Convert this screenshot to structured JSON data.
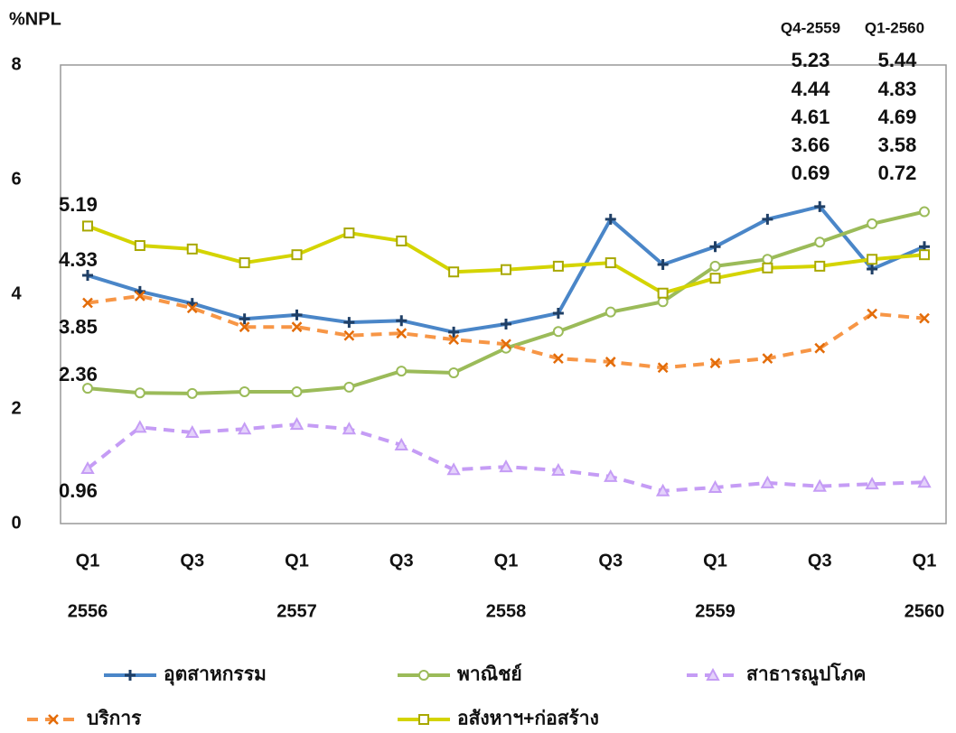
{
  "chart_data": {
    "type": "line",
    "ylabel": "%NPL",
    "categories": [
      "Q1",
      null,
      "Q3",
      null,
      "Q1",
      null,
      "Q3",
      null,
      "Q1",
      null,
      "Q3",
      null,
      "Q1",
      null,
      "Q3",
      null,
      "Q1"
    ],
    "years": [
      "2556",
      null,
      null,
      null,
      "2557",
      null,
      null,
      null,
      "2558",
      null,
      null,
      null,
      "2559",
      null,
      null,
      null,
      "2560"
    ],
    "ylim": [
      0,
      8
    ],
    "yticks": [
      0,
      2,
      4,
      6,
      8
    ],
    "grid": false,
    "annotations": [
      "Q4-2559",
      "Q1-2560"
    ],
    "series": [
      {
        "name": "อุตสาหกรรม",
        "color": "#4a86c8",
        "label_color": "#1f6fbf",
        "marker": "plus",
        "dashed": false,
        "values": [
          4.33,
          4.05,
          3.84,
          3.57,
          3.64,
          3.51,
          3.54,
          3.34,
          3.48,
          3.67,
          5.31,
          4.52,
          4.83,
          5.31,
          5.53,
          4.44,
          4.83
        ]
      },
      {
        "name": "พาณิชย์",
        "color": "#9bbb59",
        "label_color": "#76923c",
        "marker": "circle",
        "dashed": false,
        "values": [
          2.36,
          2.28,
          2.27,
          2.3,
          2.3,
          2.38,
          2.66,
          2.63,
          3.06,
          3.35,
          3.69,
          3.87,
          4.49,
          4.61,
          4.91,
          5.23,
          5.44
        ]
      },
      {
        "name": "สาธารณูปโภค",
        "color": "#c59cf5",
        "label_color": "#a970ff",
        "marker": "triangle",
        "dashed": true,
        "values": [
          0.96,
          1.68,
          1.59,
          1.65,
          1.73,
          1.65,
          1.37,
          0.94,
          0.99,
          0.93,
          0.82,
          0.57,
          0.63,
          0.71,
          0.65,
          0.69,
          0.72
        ]
      },
      {
        "name": "บริการ",
        "color": "#f79646",
        "label_color": "#e36c09",
        "marker": "x",
        "dashed": true,
        "values": [
          3.85,
          3.97,
          3.76,
          3.43,
          3.43,
          3.28,
          3.32,
          3.21,
          3.13,
          2.88,
          2.82,
          2.72,
          2.8,
          2.88,
          3.06,
          3.66,
          3.58
        ]
      },
      {
        "name": "อสังหาฯ+ก่อสร้าง",
        "color": "#d4d400",
        "label_color": "#b5a800",
        "marker": "square",
        "dashed": false,
        "values": [
          5.19,
          4.85,
          4.79,
          4.55,
          4.69,
          5.07,
          4.93,
          4.39,
          4.43,
          4.49,
          4.55,
          4.02,
          4.28,
          4.46,
          4.49,
          4.61,
          4.69
        ]
      }
    ]
  }
}
